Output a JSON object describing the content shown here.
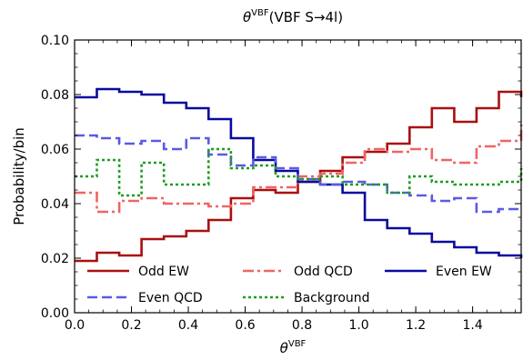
{
  "chart_data": {
    "type": "line",
    "step": true,
    "title_symbol": "θ",
    "title_superscript": "VBF",
    "title_suffix": "(VBF S→4l)",
    "xlabel_symbol": "θ",
    "xlabel_superscript": "VBF",
    "ylabel": "Probability/bin",
    "xlim": [
      0,
      1.5708
    ],
    "ylim": [
      0,
      0.1
    ],
    "xticks": [
      0.0,
      0.2,
      0.4,
      0.6,
      0.8,
      1.0,
      1.2,
      1.4
    ],
    "xtick_labels": [
      "0.0",
      "0.2",
      "0.4",
      "0.6",
      "0.8",
      "1.0",
      "1.2",
      "1.4"
    ],
    "yticks": [
      0.0,
      0.02,
      0.04,
      0.06,
      0.08,
      0.1
    ],
    "ytick_labels": [
      "0.00",
      "0.02",
      "0.04",
      "0.06",
      "0.08",
      "0.10"
    ],
    "bin_edges": [
      0.0,
      0.0785,
      0.1571,
      0.2356,
      0.3142,
      0.3927,
      0.4712,
      0.5498,
      0.6283,
      0.7069,
      0.7854,
      0.8639,
      0.9425,
      1.021,
      1.0996,
      1.1781,
      1.2566,
      1.3352,
      1.4137,
      1.4923,
      1.5708
    ],
    "grid": false,
    "legend_position": "bottom",
    "series": [
      {
        "name": "Odd EW",
        "color": "#aa0f0f",
        "dash": "solid",
        "values": [
          0.019,
          0.022,
          0.021,
          0.027,
          0.028,
          0.03,
          0.034,
          0.042,
          0.045,
          0.044,
          0.048,
          0.052,
          0.057,
          0.059,
          0.062,
          0.068,
          0.075,
          0.07,
          0.075,
          0.081,
          0.079
        ]
      },
      {
        "name": "Odd QCD",
        "color": "#f06464",
        "dash": "dashdot",
        "values": [
          0.044,
          0.037,
          0.041,
          0.042,
          0.04,
          0.04,
          0.039,
          0.04,
          0.046,
          0.046,
          0.05,
          0.051,
          0.055,
          0.06,
          0.059,
          0.06,
          0.056,
          0.055,
          0.061,
          0.063,
          0.069
        ]
      },
      {
        "name": "Even EW",
        "color": "#0a0aa0",
        "dash": "solid",
        "values": [
          0.079,
          0.082,
          0.081,
          0.08,
          0.077,
          0.075,
          0.071,
          0.064,
          0.056,
          0.052,
          0.048,
          0.047,
          0.044,
          0.034,
          0.031,
          0.029,
          0.026,
          0.024,
          0.022,
          0.021,
          0.02
        ]
      },
      {
        "name": "Even QCD",
        "color": "#5a5ae6",
        "dash": "dashed",
        "values": [
          0.065,
          0.064,
          0.062,
          0.063,
          0.06,
          0.064,
          0.058,
          0.054,
          0.057,
          0.053,
          0.049,
          0.047,
          0.048,
          0.047,
          0.044,
          0.043,
          0.041,
          0.042,
          0.037,
          0.038,
          0.038
        ]
      },
      {
        "name": "Background",
        "color": "#1e9e1e",
        "dash": "dotted",
        "values": [
          0.05,
          0.056,
          0.043,
          0.055,
          0.047,
          0.047,
          0.06,
          0.053,
          0.054,
          0.05,
          0.049,
          0.05,
          0.047,
          0.047,
          0.044,
          0.05,
          0.048,
          0.047,
          0.047,
          0.048,
          0.053
        ]
      }
    ]
  }
}
